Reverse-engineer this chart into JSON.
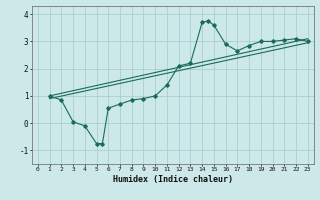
{
  "title": "",
  "xlabel": "Humidex (Indice chaleur)",
  "ylabel": "",
  "background_color": "#cce8e8",
  "grid_color": "#aacfcf",
  "line_color": "#1a6b5a",
  "xlim": [
    -0.5,
    23.5
  ],
  "ylim": [
    -1.5,
    4.3
  ],
  "xticks": [
    0,
    1,
    2,
    3,
    4,
    5,
    6,
    7,
    8,
    9,
    10,
    11,
    12,
    13,
    14,
    15,
    16,
    17,
    18,
    19,
    20,
    21,
    22,
    23
  ],
  "yticks": [
    -1,
    0,
    1,
    2,
    3,
    4
  ],
  "curve_x": [
    1,
    2,
    3,
    4,
    5,
    5.5,
    6,
    7,
    8,
    9,
    10,
    11,
    12,
    13,
    14,
    14.5,
    15,
    16,
    17,
    18,
    19,
    20,
    21,
    22,
    23
  ],
  "curve_y": [
    1.0,
    0.85,
    0.05,
    -0.1,
    -0.75,
    -0.75,
    0.55,
    0.7,
    0.85,
    0.9,
    1.0,
    1.4,
    2.1,
    2.2,
    3.7,
    3.75,
    3.6,
    2.9,
    2.65,
    2.85,
    3.0,
    3.0,
    3.05,
    3.1,
    3.0
  ],
  "line1_x": [
    1,
    23
  ],
  "line1_y": [
    1.0,
    3.1
  ],
  "line2_x": [
    1,
    23
  ],
  "line2_y": [
    0.9,
    2.95
  ]
}
